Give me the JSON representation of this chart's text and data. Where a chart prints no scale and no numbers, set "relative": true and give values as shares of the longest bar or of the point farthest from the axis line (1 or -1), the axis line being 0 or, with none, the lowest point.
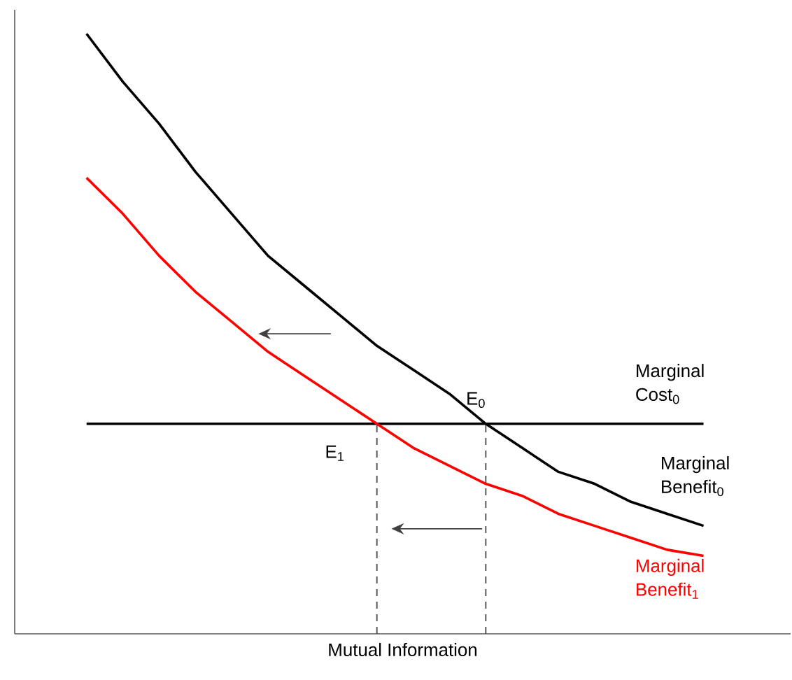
{
  "chart_data": {
    "type": "line",
    "relative": true,
    "xlabel": "Mutual Information",
    "categories": [
      null,
      null,
      null,
      null,
      null,
      null,
      null,
      null,
      null,
      null,
      null,
      null,
      null,
      null,
      null,
      null,
      null,
      null
    ],
    "series": [
      {
        "name": "Marginal Cost$_{0}$",
        "color": "#000000",
        "values": [
          0.35,
          0.35,
          0.35,
          0.35,
          0.35,
          0.35,
          0.35,
          0.35,
          0.35,
          0.35,
          0.35,
          0.35,
          0.35,
          0.35,
          0.35,
          0.35,
          0.35,
          0.35
        ]
      },
      {
        "name": "Marginal Benefit$_{0}$",
        "color": "#000000",
        "values": [
          1,
          0.92,
          0.85,
          0.77,
          0.7,
          0.63,
          0.58,
          0.53,
          0.48,
          0.44,
          0.4,
          0.35,
          0.31,
          0.27,
          0.25,
          0.22,
          0.2,
          0.18
        ]
      },
      {
        "name": "Marginal Benefit$_{1}$",
        "color": "#ff0000",
        "values": [
          0.76,
          0.7,
          0.63,
          0.57,
          0.52,
          0.47,
          0.43,
          0.39,
          0.35,
          0.31,
          0.28,
          0.25,
          0.23,
          0.2,
          0.18,
          0.16,
          0.14,
          0.13
        ]
      }
    ],
    "annotations": [
      "E$_{0}$",
      "E$_{1}$"
    ]
  }
}
